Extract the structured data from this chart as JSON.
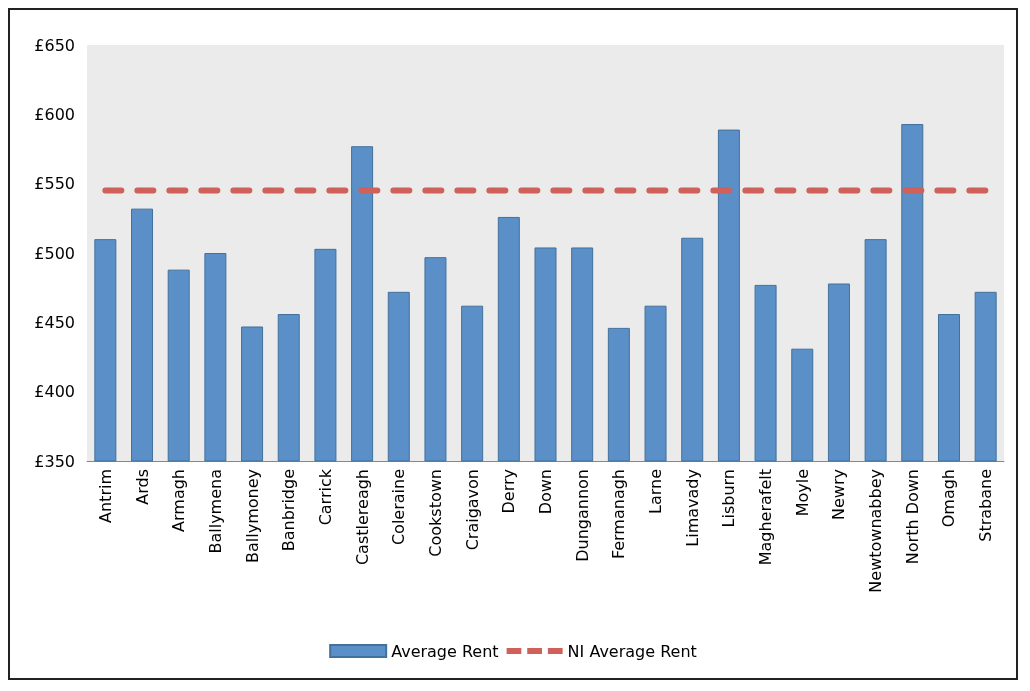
{
  "chart_data": {
    "type": "bar",
    "categories": [
      "Antrim",
      "Ards",
      "Armagh",
      "Ballymena",
      "Ballymoney",
      "Banbridge",
      "Carrick",
      "Castlereagh",
      "Coleraine",
      "Cookstown",
      "Craigavon",
      "Derry",
      "Down",
      "Dungannon",
      "Fermanagh",
      "Larne",
      "Limavady",
      "Lisburn",
      "Magherafelt",
      "Moyle",
      "Newry",
      "Newtownabbey",
      "North Down",
      "Omagh",
      "Strabane"
    ],
    "series": [
      {
        "name": "Average Rent",
        "color": "#5b8fc7",
        "values": [
          510,
          532,
          488,
          500,
          447,
          456,
          503,
          577,
          472,
          497,
          462,
          526,
          504,
          504,
          446,
          462,
          511,
          589,
          477,
          431,
          478,
          510,
          593,
          456,
          472
        ]
      },
      {
        "name": "NI Average Rent",
        "type": "line",
        "color": "#d0605a",
        "line_style": "dashed",
        "marker": "none",
        "values": [
          545,
          545,
          545,
          545,
          545,
          545,
          545,
          545,
          545,
          545,
          545,
          545,
          545,
          545,
          545,
          545,
          545,
          545,
          545,
          545,
          545,
          545,
          545,
          545,
          545
        ]
      }
    ],
    "ylim": [
      350,
      650
    ],
    "yticks": [
      {
        "value": 350,
        "label": "£350"
      },
      {
        "value": 400,
        "label": "£400"
      },
      {
        "value": 450,
        "label": "£450"
      },
      {
        "value": 500,
        "label": "£500"
      },
      {
        "value": 550,
        "label": "£550"
      },
      {
        "value": 600,
        "label": "£600"
      },
      {
        "value": 650,
        "label": "£650"
      }
    ],
    "grid": false,
    "legend": "bottom"
  }
}
